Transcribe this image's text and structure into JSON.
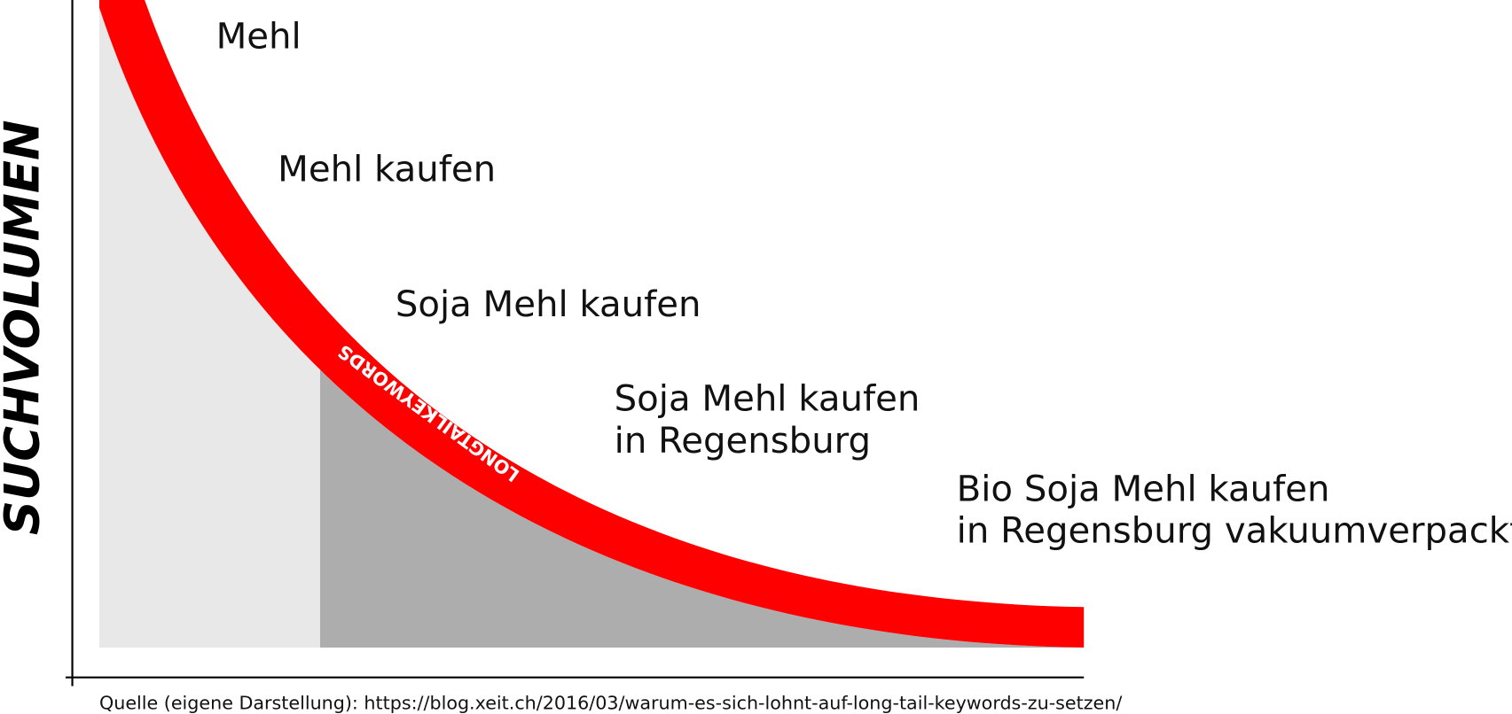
{
  "axis_label": "SUCHVOLUMEN",
  "curve_label": "LONGTAILKEYWORDS",
  "keywords": [
    {
      "lines": [
        "Mehl"
      ]
    },
    {
      "lines": [
        "Mehl kaufen"
      ]
    },
    {
      "lines": [
        "Soja Mehl kaufen"
      ]
    },
    {
      "lines": [
        "Soja Mehl kaufen",
        "in Regensburg"
      ]
    },
    {
      "lines": [
        "Bio Soja Mehl kaufen",
        "in Regensburg vakuumverpackt"
      ]
    }
  ],
  "source": "Quelle (eigene Darstellung): https://blog.xeit.ch/2016/03/warum-es-sich-lohnt-auf-long-tail-keywords-zu-setzen/"
}
